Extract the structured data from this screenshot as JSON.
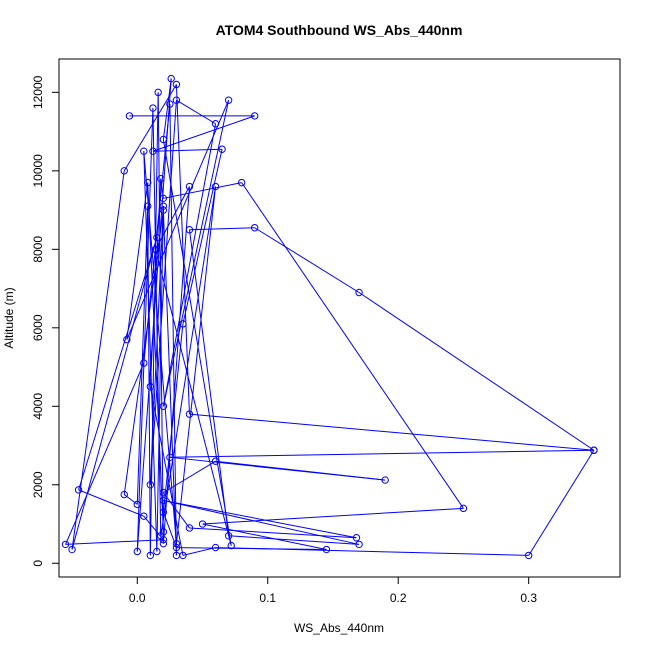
{
  "chart_data": {
    "type": "line",
    "title": "ATOM4 Southbound WS_Abs_440nm",
    "xlabel": "WS_Abs_440nm",
    "ylabel": "Altitude (m)",
    "xlim": [
      -0.06,
      0.37
    ],
    "ylim": [
      -350,
      12850
    ],
    "x_ticks": [
      0.0,
      0.1,
      0.2,
      0.3
    ],
    "x_tick_labels": [
      "0.0",
      "0.1",
      "0.2",
      "0.3"
    ],
    "y_ticks": [
      0,
      2000,
      4000,
      6000,
      8000,
      10000,
      12000
    ],
    "y_tick_labels": [
      "0",
      "2000",
      "4000",
      "6000",
      "8000",
      "10000",
      "12000"
    ],
    "grid": false,
    "legend": "none",
    "series_color": "#0000ff",
    "marker": "open-circle",
    "series": [
      {
        "points": [
          [
            -0.006,
            11400
          ],
          [
            0.09,
            11400
          ],
          [
            0.012,
            10500
          ],
          [
            0.065,
            10550
          ],
          [
            0.035,
            6100
          ],
          [
            0.02,
            1300
          ],
          [
            0.03,
            400
          ],
          [
            0.145,
            350
          ],
          [
            0.05,
            1000
          ],
          [
            0.25,
            1400
          ],
          [
            0.08,
            9700
          ],
          [
            0.02,
            9300
          ],
          [
            0.018,
            9800
          ],
          [
            0.01,
            4500
          ],
          [
            0.035,
            200
          ],
          [
            0.06,
            400
          ],
          [
            0.3,
            200
          ],
          [
            0.35,
            2880
          ],
          [
            0.025,
            2700
          ],
          [
            0.19,
            2120
          ],
          [
            0.06,
            2600
          ],
          [
            0.02,
            1800
          ],
          [
            0.04,
            900
          ],
          [
            0.168,
            650
          ],
          [
            0.02,
            1600
          ],
          [
            0.17,
            480
          ],
          [
            0.07,
            700
          ],
          [
            0.04,
            8500
          ],
          [
            0.09,
            8550
          ],
          [
            0.17,
            6900
          ],
          [
            0.35,
            2880
          ],
          [
            0.04,
            3800
          ],
          [
            0.03,
            12200
          ],
          [
            -0.01,
            10000
          ],
          [
            -0.05,
            350
          ],
          [
            0.015,
            8300
          ],
          [
            -0.045,
            1870
          ],
          [
            0.005,
            1200
          ],
          [
            0.02,
            600
          ],
          [
            -0.055,
            480
          ],
          [
            0.005,
            5100
          ],
          [
            0.025,
            11700
          ],
          [
            0.03,
            200
          ],
          [
            0.02,
            9000
          ],
          [
            -0.01,
            1750
          ],
          [
            0.0,
            1500
          ],
          [
            0.008,
            9100
          ],
          [
            0.01,
            200
          ],
          [
            0.016,
            12000
          ],
          [
            0.02,
            500
          ],
          [
            0.04,
            9600
          ],
          [
            0.014,
            8000
          ],
          [
            0.072,
            450
          ],
          [
            0.02,
            10800
          ],
          [
            0.026,
            12350
          ],
          [
            0.0,
            300
          ],
          [
            0.012,
            11600
          ],
          [
            0.018,
            700
          ],
          [
            0.06,
            9600
          ],
          [
            0.03,
            500
          ],
          [
            0.005,
            10500
          ],
          [
            0.015,
            300
          ],
          [
            0.02,
            9100
          ],
          [
            0.01,
            2000
          ],
          [
            0.03,
            11800
          ],
          [
            0.06,
            11200
          ],
          [
            0.02,
            4000
          ],
          [
            0.07,
            11800
          ],
          [
            -0.008,
            5700
          ],
          [
            0.008,
            9700
          ],
          [
            0.02,
            800
          ]
        ]
      }
    ]
  }
}
